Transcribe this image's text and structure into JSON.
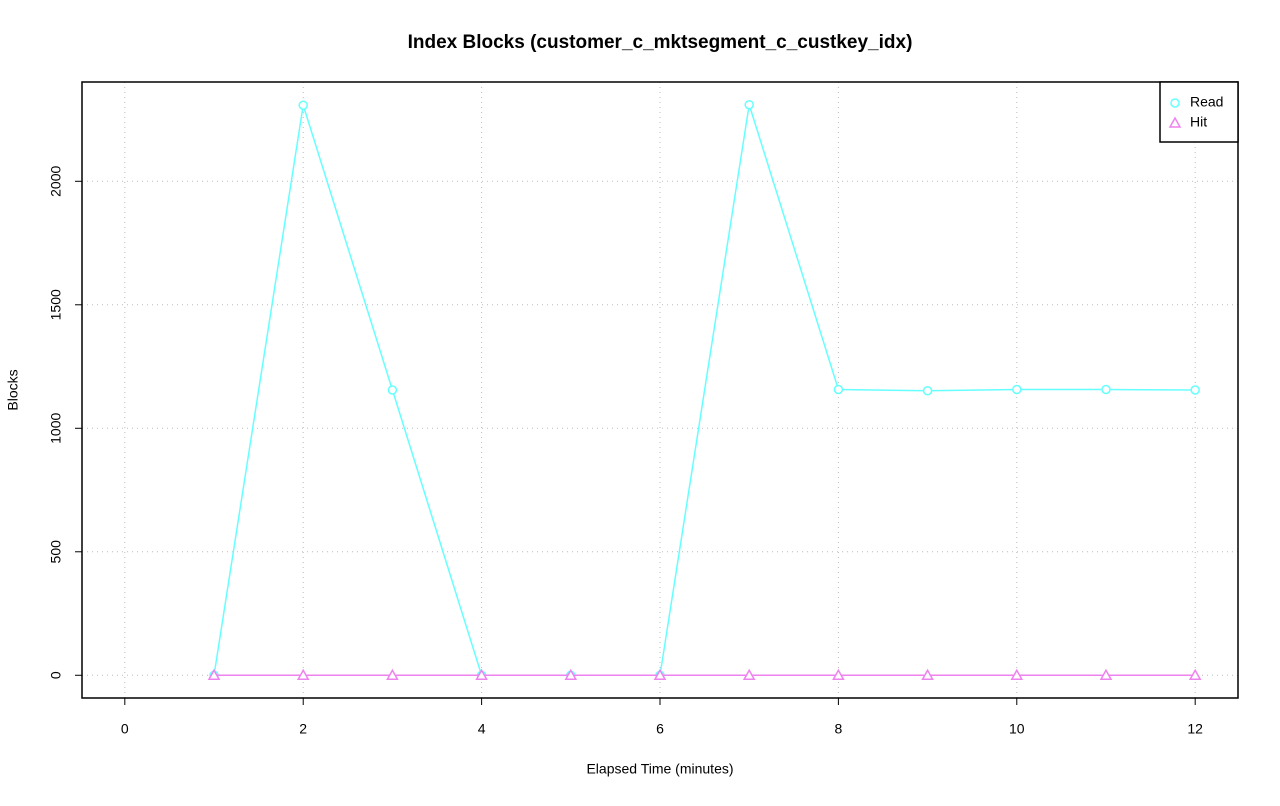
{
  "chart_data": {
    "type": "line",
    "title": "Index Blocks (customer_c_mktsegment_c_custkey_idx)",
    "x_label": "Elapsed Time (minutes)",
    "y_label": "Blocks",
    "x": [
      1,
      2,
      3,
      4,
      5,
      6,
      7,
      8,
      9,
      10,
      11,
      12
    ],
    "series": [
      {
        "name": "Read",
        "color": "#66ffff",
        "marker": "circle",
        "values": [
          0,
          2308,
          1155,
          0,
          0,
          0,
          2310,
          1157,
          1152,
          1157,
          1157,
          1155
        ]
      },
      {
        "name": "Hit",
        "color": "#ee82ee",
        "marker": "triangle",
        "values": [
          0,
          0,
          0,
          0,
          0,
          0,
          0,
          0,
          0,
          0,
          0,
          0
        ]
      }
    ],
    "xlim": [
      -0.48,
      12.48
    ],
    "xticks": [
      0,
      2,
      4,
      6,
      8,
      10,
      12
    ],
    "ylim": [
      -92,
      2402
    ],
    "yticks": [
      0,
      500,
      1000,
      1500,
      2000
    ],
    "grid": true,
    "legend": "top-right"
  }
}
